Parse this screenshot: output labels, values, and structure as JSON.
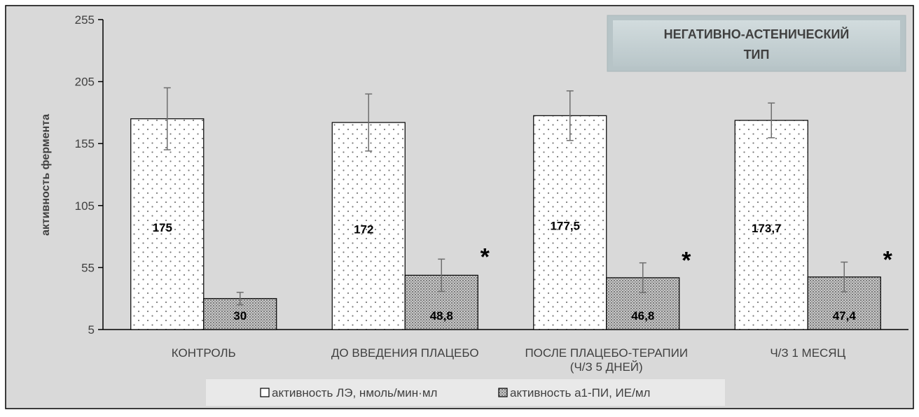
{
  "chart_data": {
    "type": "bar",
    "title": "НЕГАТИВНО-АСТЕНИЧЕСКИЙ ТИП",
    "title_lines": [
      "НЕГАТИВНО-АСТЕНИЧЕСКИЙ",
      "ТИП"
    ],
    "xlabel": "",
    "ylabel": "активность фермента",
    "ylim": [
      5,
      255
    ],
    "yticks": [
      "5",
      "55",
      "105",
      "155",
      "205",
      "255"
    ],
    "grid": false,
    "legend_position": "bottom",
    "categories": [
      [
        "КОНТРОЛЬ"
      ],
      [
        "ДО ВВЕДЕНИЯ ПЛАЦЕБО"
      ],
      [
        "ПОСЛЕ ПЛАЦЕБО-ТЕРАПИИ",
        "(Ч/З 5 ДНЕЙ)"
      ],
      [
        "Ч/З 1 МЕСЯЦ"
      ]
    ],
    "series": [
      {
        "name": "активность ЛЭ, нмоль/мин·мл",
        "values": [
          175,
          172,
          177.5,
          173.7
        ],
        "value_labels": [
          "175",
          "172",
          "177,5",
          "173,7"
        ],
        "error": [
          25,
          23,
          20,
          14
        ],
        "significant": [
          false,
          false,
          false,
          false
        ],
        "color": "#ffffff",
        "pattern": "dots"
      },
      {
        "name": "активность а1-ПИ, ИЕ/мл",
        "values": [
          30,
          48.8,
          46.8,
          47.4
        ],
        "value_labels": [
          "30",
          "48,8",
          "46,8",
          "47,4"
        ],
        "error": [
          5,
          13,
          12,
          12
        ],
        "significant": [
          false,
          true,
          true,
          true
        ],
        "color": "#bfbfbf",
        "pattern": "crosshatch"
      }
    ],
    "significance_marker": "*",
    "background": "#d9d9d9"
  }
}
